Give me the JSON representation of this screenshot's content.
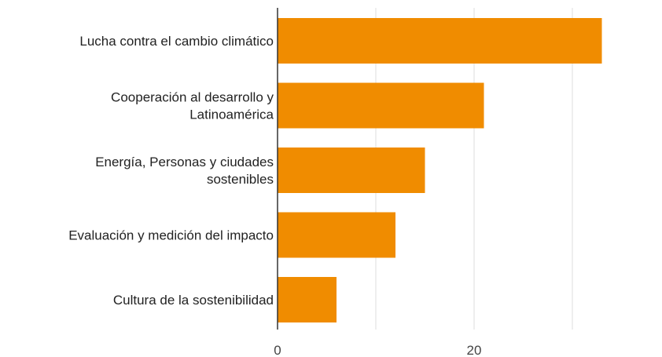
{
  "chart_data": {
    "type": "bar",
    "orientation": "horizontal",
    "categories": [
      "Lucha contra el cambio climático",
      "Cooperación al desarrollo y Latinoamérica",
      "Energía, Personas y ciudades sostenibles",
      "Evaluación y medición del impacto",
      "Cultura de la sostenibilidad"
    ],
    "category_lines": [
      [
        "Lucha contra el cambio climático"
      ],
      [
        "Cooperación al desarrollo y",
        "Latinoamérica"
      ],
      [
        "Energía, Personas y ciudades",
        "sostenibles"
      ],
      [
        "Evaluación y medición del impacto"
      ],
      [
        "Cultura de la sostenibilidad"
      ]
    ],
    "values": [
      33,
      21,
      15,
      12,
      6
    ],
    "xlim": [
      0,
      38
    ],
    "xticks": [
      0,
      20
    ],
    "gridlines_at": [
      10,
      20,
      30
    ],
    "grid": true,
    "legend": "none",
    "bar_color": "#f08c00"
  }
}
